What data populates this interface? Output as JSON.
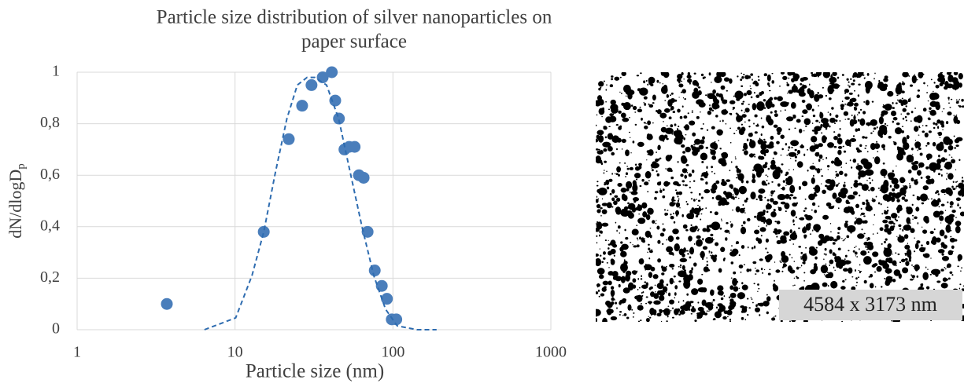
{
  "chart_data": {
    "type": "scatter",
    "title": [
      "Particle size distribution of silver nanoparticles on",
      "paper surface"
    ],
    "x_label": "Particle size (nm)",
    "y_label": "dN/dlogD",
    "y_label_subscript": "p",
    "x_scale": "log",
    "xlim": [
      1,
      1000
    ],
    "xticks": [
      1,
      10,
      100,
      1000
    ],
    "ylim": [
      0,
      1
    ],
    "yticks": [
      0,
      {
        "value": 0.2,
        "label": "0,2"
      },
      {
        "value": 0.4,
        "label": "0,4"
      },
      {
        "value": 0.6,
        "label": "0,6"
      },
      {
        "value": 0.8,
        "label": "0,8"
      },
      1
    ],
    "grid": true,
    "series": [
      {
        "color": "#4a7ebb",
        "marker": "circle",
        "x": [
          3.7,
          15.2,
          21.9,
          26.6,
          30.5,
          35.9,
          41.0,
          43.1,
          45.5,
          49.3,
          52.8,
          57.2,
          60.9,
          65.2,
          69.1,
          76.7,
          85.0,
          91.6,
          98.3,
          105
        ],
        "values": [
          0.1,
          0.38,
          0.74,
          0.87,
          0.95,
          0.98,
          1.0,
          0.89,
          0.82,
          0.7,
          0.71,
          0.71,
          0.6,
          0.59,
          0.38,
          0.23,
          0.17,
          0.12,
          0.04,
          0.04
        ]
      },
      {
        "color": "#2e6cb0",
        "line_style": "dashed",
        "x": [
          6.4,
          10.1,
          12.8,
          15.2,
          18.0,
          21.3,
          24.8,
          28.6,
          32.0,
          38.0,
          45.3,
          53.7,
          63.7,
          75.6,
          89.7,
          106.5,
          142,
          189
        ],
        "values": [
          0,
          0.046,
          0.21,
          0.38,
          0.61,
          0.82,
          0.95,
          0.98,
          0.98,
          0.95,
          0.82,
          0.61,
          0.4,
          0.21,
          0.08,
          0.015,
          0,
          0
        ]
      }
    ]
  },
  "image": {
    "caption": "4584 x 3173 nm"
  }
}
